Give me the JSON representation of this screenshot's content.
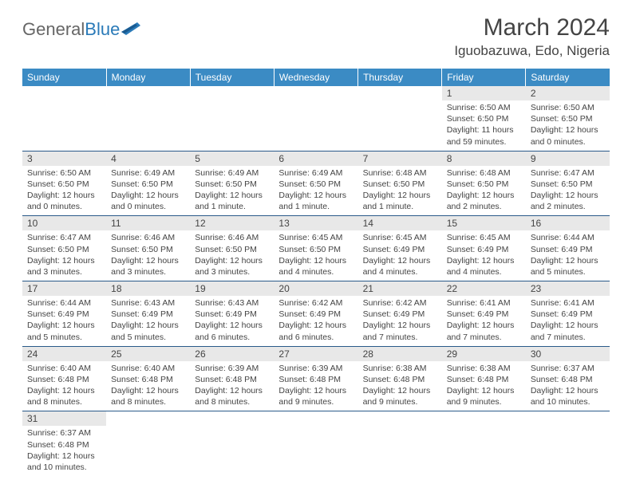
{
  "header": {
    "logo_general": "General",
    "logo_blue": "Blue",
    "month_title": "March 2024",
    "location": "Iguobazuwa, Edo, Nigeria"
  },
  "colors": {
    "header_bg": "#3b8bc4",
    "header_text": "#ffffff",
    "daynum_bg": "#e8e8e8",
    "border": "#2a5a8a",
    "logo_blue": "#2a7ab8",
    "text": "#444444"
  },
  "weekdays": [
    "Sunday",
    "Monday",
    "Tuesday",
    "Wednesday",
    "Thursday",
    "Friday",
    "Saturday"
  ],
  "weeks": [
    [
      null,
      null,
      null,
      null,
      null,
      {
        "n": "1",
        "sr": "Sunrise: 6:50 AM",
        "ss": "Sunset: 6:50 PM",
        "dl": "Daylight: 11 hours and 59 minutes."
      },
      {
        "n": "2",
        "sr": "Sunrise: 6:50 AM",
        "ss": "Sunset: 6:50 PM",
        "dl": "Daylight: 12 hours and 0 minutes."
      }
    ],
    [
      {
        "n": "3",
        "sr": "Sunrise: 6:50 AM",
        "ss": "Sunset: 6:50 PM",
        "dl": "Daylight: 12 hours and 0 minutes."
      },
      {
        "n": "4",
        "sr": "Sunrise: 6:49 AM",
        "ss": "Sunset: 6:50 PM",
        "dl": "Daylight: 12 hours and 0 minutes."
      },
      {
        "n": "5",
        "sr": "Sunrise: 6:49 AM",
        "ss": "Sunset: 6:50 PM",
        "dl": "Daylight: 12 hours and 1 minute."
      },
      {
        "n": "6",
        "sr": "Sunrise: 6:49 AM",
        "ss": "Sunset: 6:50 PM",
        "dl": "Daylight: 12 hours and 1 minute."
      },
      {
        "n": "7",
        "sr": "Sunrise: 6:48 AM",
        "ss": "Sunset: 6:50 PM",
        "dl": "Daylight: 12 hours and 1 minute."
      },
      {
        "n": "8",
        "sr": "Sunrise: 6:48 AM",
        "ss": "Sunset: 6:50 PM",
        "dl": "Daylight: 12 hours and 2 minutes."
      },
      {
        "n": "9",
        "sr": "Sunrise: 6:47 AM",
        "ss": "Sunset: 6:50 PM",
        "dl": "Daylight: 12 hours and 2 minutes."
      }
    ],
    [
      {
        "n": "10",
        "sr": "Sunrise: 6:47 AM",
        "ss": "Sunset: 6:50 PM",
        "dl": "Daylight: 12 hours and 3 minutes."
      },
      {
        "n": "11",
        "sr": "Sunrise: 6:46 AM",
        "ss": "Sunset: 6:50 PM",
        "dl": "Daylight: 12 hours and 3 minutes."
      },
      {
        "n": "12",
        "sr": "Sunrise: 6:46 AM",
        "ss": "Sunset: 6:50 PM",
        "dl": "Daylight: 12 hours and 3 minutes."
      },
      {
        "n": "13",
        "sr": "Sunrise: 6:45 AM",
        "ss": "Sunset: 6:50 PM",
        "dl": "Daylight: 12 hours and 4 minutes."
      },
      {
        "n": "14",
        "sr": "Sunrise: 6:45 AM",
        "ss": "Sunset: 6:49 PM",
        "dl": "Daylight: 12 hours and 4 minutes."
      },
      {
        "n": "15",
        "sr": "Sunrise: 6:45 AM",
        "ss": "Sunset: 6:49 PM",
        "dl": "Daylight: 12 hours and 4 minutes."
      },
      {
        "n": "16",
        "sr": "Sunrise: 6:44 AM",
        "ss": "Sunset: 6:49 PM",
        "dl": "Daylight: 12 hours and 5 minutes."
      }
    ],
    [
      {
        "n": "17",
        "sr": "Sunrise: 6:44 AM",
        "ss": "Sunset: 6:49 PM",
        "dl": "Daylight: 12 hours and 5 minutes."
      },
      {
        "n": "18",
        "sr": "Sunrise: 6:43 AM",
        "ss": "Sunset: 6:49 PM",
        "dl": "Daylight: 12 hours and 5 minutes."
      },
      {
        "n": "19",
        "sr": "Sunrise: 6:43 AM",
        "ss": "Sunset: 6:49 PM",
        "dl": "Daylight: 12 hours and 6 minutes."
      },
      {
        "n": "20",
        "sr": "Sunrise: 6:42 AM",
        "ss": "Sunset: 6:49 PM",
        "dl": "Daylight: 12 hours and 6 minutes."
      },
      {
        "n": "21",
        "sr": "Sunrise: 6:42 AM",
        "ss": "Sunset: 6:49 PM",
        "dl": "Daylight: 12 hours and 7 minutes."
      },
      {
        "n": "22",
        "sr": "Sunrise: 6:41 AM",
        "ss": "Sunset: 6:49 PM",
        "dl": "Daylight: 12 hours and 7 minutes."
      },
      {
        "n": "23",
        "sr": "Sunrise: 6:41 AM",
        "ss": "Sunset: 6:49 PM",
        "dl": "Daylight: 12 hours and 7 minutes."
      }
    ],
    [
      {
        "n": "24",
        "sr": "Sunrise: 6:40 AM",
        "ss": "Sunset: 6:48 PM",
        "dl": "Daylight: 12 hours and 8 minutes."
      },
      {
        "n": "25",
        "sr": "Sunrise: 6:40 AM",
        "ss": "Sunset: 6:48 PM",
        "dl": "Daylight: 12 hours and 8 minutes."
      },
      {
        "n": "26",
        "sr": "Sunrise: 6:39 AM",
        "ss": "Sunset: 6:48 PM",
        "dl": "Daylight: 12 hours and 8 minutes."
      },
      {
        "n": "27",
        "sr": "Sunrise: 6:39 AM",
        "ss": "Sunset: 6:48 PM",
        "dl": "Daylight: 12 hours and 9 minutes."
      },
      {
        "n": "28",
        "sr": "Sunrise: 6:38 AM",
        "ss": "Sunset: 6:48 PM",
        "dl": "Daylight: 12 hours and 9 minutes."
      },
      {
        "n": "29",
        "sr": "Sunrise: 6:38 AM",
        "ss": "Sunset: 6:48 PM",
        "dl": "Daylight: 12 hours and 9 minutes."
      },
      {
        "n": "30",
        "sr": "Sunrise: 6:37 AM",
        "ss": "Sunset: 6:48 PM",
        "dl": "Daylight: 12 hours and 10 minutes."
      }
    ],
    [
      {
        "n": "31",
        "sr": "Sunrise: 6:37 AM",
        "ss": "Sunset: 6:48 PM",
        "dl": "Daylight: 12 hours and 10 minutes."
      },
      null,
      null,
      null,
      null,
      null,
      null
    ]
  ]
}
